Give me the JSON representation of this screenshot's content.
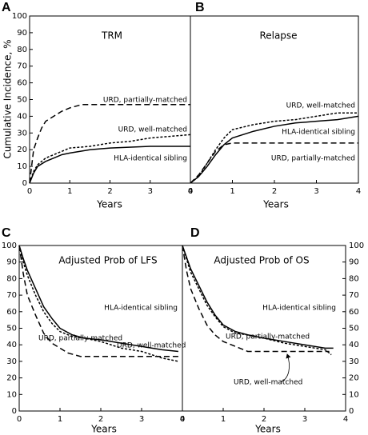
{
  "chart_data": [
    {
      "type": "line",
      "panel_label": "A",
      "title": "TRM",
      "xlabel": "Years",
      "ylabel": "Cumulative Incidence, %",
      "xlim": [
        0,
        4
      ],
      "ylim": [
        0,
        100
      ],
      "xticks": [
        0,
        1,
        2,
        3,
        4
      ],
      "yticks": [
        0,
        10,
        20,
        30,
        40,
        50,
        60,
        70,
        80,
        90,
        100
      ],
      "yaxis_side": "left",
      "series": [
        {
          "name": "URD, partially-matched",
          "color": "#000000",
          "linestyle": "dashed",
          "x": [
            0,
            0.05,
            0.1,
            0.2,
            0.3,
            0.4,
            0.6,
            0.8,
            1.0,
            1.3,
            4
          ],
          "values": [
            0,
            10,
            20,
            27,
            33,
            37,
            40,
            43,
            45,
            47,
            47
          ]
        },
        {
          "name": "URD, well-matched",
          "color": "#000000",
          "linestyle": "dotted",
          "x": [
            0,
            0.1,
            0.2,
            0.4,
            0.6,
            0.8,
            1,
            1.5,
            2,
            2.5,
            3,
            4
          ],
          "values": [
            0,
            7,
            11,
            15,
            17,
            19,
            21,
            22,
            24,
            25,
            27,
            29
          ]
        },
        {
          "name": "HLA-identical sibling",
          "color": "#000000",
          "linestyle": "solid",
          "x": [
            0,
            0.1,
            0.2,
            0.4,
            0.6,
            0.8,
            1,
            1.5,
            2,
            3,
            4
          ],
          "values": [
            0,
            6,
            10,
            13,
            15,
            17,
            18,
            20,
            21,
            22,
            22
          ]
        }
      ]
    },
    {
      "type": "line",
      "panel_label": "B",
      "title": "Relapse",
      "xlabel": "Years",
      "xlim": [
        0,
        4
      ],
      "ylim": [
        0,
        100
      ],
      "xticks": [
        0,
        1,
        2,
        3,
        4
      ],
      "series": [
        {
          "name": "URD, well-matched",
          "color": "#000000",
          "linestyle": "dotted",
          "x": [
            0,
            0.2,
            0.4,
            0.6,
            0.8,
            1,
            1.5,
            2,
            2.5,
            3,
            3.5,
            4
          ],
          "values": [
            0,
            4,
            12,
            20,
            27,
            32,
            35,
            37,
            38,
            40,
            42,
            42
          ]
        },
        {
          "name": "HLA-identical sibling",
          "color": "#000000",
          "linestyle": "solid",
          "x": [
            0,
            0.2,
            0.4,
            0.6,
            0.8,
            1,
            1.5,
            2,
            2.5,
            3,
            3.5,
            4
          ],
          "values": [
            0,
            4,
            10,
            17,
            23,
            27,
            31,
            34,
            36,
            37,
            38,
            40
          ]
        },
        {
          "name": "URD, partially-matched",
          "color": "#000000",
          "linestyle": "dashed",
          "x": [
            0,
            0.2,
            0.4,
            0.6,
            0.8,
            1,
            4
          ],
          "values": [
            0,
            5,
            12,
            19,
            23,
            24,
            24
          ]
        }
      ]
    },
    {
      "type": "line",
      "panel_label": "C",
      "title": "Adjusted Prob of LFS",
      "xlabel": "Years",
      "xlim": [
        0,
        4
      ],
      "ylim": [
        0,
        100
      ],
      "xticks": [
        0,
        1,
        2,
        3,
        4
      ],
      "yticks": [
        0,
        10,
        20,
        30,
        40,
        50,
        60,
        70,
        80,
        90,
        100
      ],
      "yaxis_side": "left",
      "series": [
        {
          "name": "HLA-identical sibling",
          "color": "#000000",
          "linestyle": "solid",
          "x": [
            0,
            0.1,
            0.2,
            0.4,
            0.6,
            0.8,
            1,
            1.3,
            1.6,
            2,
            2.5,
            3,
            3.5,
            3.9
          ],
          "values": [
            100,
            92,
            85,
            74,
            63,
            56,
            50,
            46,
            44,
            43,
            41,
            39,
            37,
            36
          ]
        },
        {
          "name": "URD, partially-matched",
          "color": "#000000",
          "linestyle": "dashed",
          "x": [
            0,
            0.1,
            0.2,
            0.4,
            0.6,
            0.8,
            1,
            1.2,
            1.5,
            2,
            3,
            3.9
          ],
          "values": [
            100,
            83,
            70,
            58,
            47,
            41,
            38,
            35,
            33,
            33,
            33,
            33
          ]
        },
        {
          "name": "URD, well-matched",
          "color": "#000000",
          "linestyle": "dotted",
          "x": [
            0,
            0.1,
            0.2,
            0.4,
            0.6,
            0.8,
            1,
            1.3,
            1.6,
            2,
            2.5,
            3,
            3.5,
            3.9
          ],
          "values": [
            100,
            90,
            82,
            70,
            60,
            53,
            48,
            45,
            44,
            42,
            38,
            36,
            32,
            30
          ]
        }
      ]
    },
    {
      "type": "line",
      "panel_label": "D",
      "title": "Adjusted Prob of OS",
      "xlabel": "Years",
      "xlim": [
        0,
        4
      ],
      "ylim": [
        0,
        100
      ],
      "xticks": [
        0,
        1,
        2,
        3,
        4
      ],
      "yticks": [
        0,
        10,
        20,
        30,
        40,
        50,
        60,
        70,
        80,
        90,
        100
      ],
      "yaxis_side": "right",
      "series": [
        {
          "name": "HLA-identical sibling",
          "color": "#000000",
          "linestyle": "solid",
          "x": [
            0,
            0.1,
            0.2,
            0.4,
            0.6,
            0.8,
            1,
            1.3,
            1.6,
            2,
            2.5,
            3,
            3.5,
            3.7
          ],
          "values": [
            100,
            93,
            86,
            76,
            66,
            58,
            52,
            48,
            46,
            44,
            42,
            40,
            38,
            38
          ]
        },
        {
          "name": "URD, partially-matched",
          "color": "#000000",
          "linestyle": "dashed",
          "x": [
            0,
            0.1,
            0.2,
            0.4,
            0.6,
            0.8,
            1,
            1.3,
            1.6,
            2,
            3,
            3.6
          ],
          "values": [
            100,
            85,
            74,
            62,
            52,
            46,
            42,
            39,
            36,
            36,
            36,
            36
          ]
        },
        {
          "name": "URD, well-matched",
          "color": "#000000",
          "linestyle": "dotted",
          "x": [
            0,
            0.1,
            0.2,
            0.4,
            0.6,
            0.8,
            1,
            1.3,
            1.6,
            2,
            2.5,
            3,
            3.5,
            3.65
          ],
          "values": [
            100,
            92,
            84,
            74,
            64,
            57,
            51,
            47,
            46,
            44,
            41,
            39,
            37,
            34
          ]
        }
      ]
    }
  ]
}
